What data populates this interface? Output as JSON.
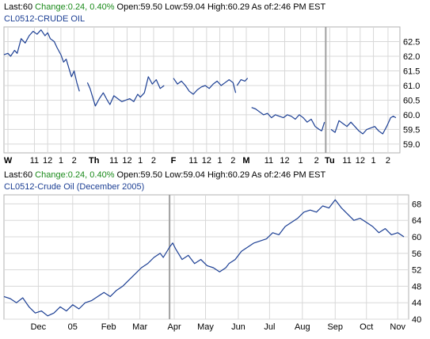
{
  "colors": {
    "line": "#1c3f94",
    "grid": "#d8d8d8",
    "frame": "#b0b0b0",
    "change": "#1a8a1a",
    "subtitle": "#1c3f94",
    "separator": "#a0a0a0"
  },
  "top_panel": {
    "quote": {
      "last_label": "Last:",
      "last_value": "60",
      "change_label": "Change:",
      "change_value": "0.24, 0.40%",
      "open_label": "Open:",
      "open_value": "59.50",
      "low_label": "Low:",
      "low_value": "59.04",
      "high_label": "High:",
      "high_value": "60.29",
      "asof_label": "As of:",
      "asof_value": "2:46 PM EST"
    },
    "subtitle": "CL0512-CRUDE OIL"
  },
  "bottom_panel": {
    "quote": {
      "last_label": "Last:",
      "last_value": "60",
      "change_label": "Change:",
      "change_value": "0.24, 0.40%",
      "open_label": "Open:",
      "open_value": "59.50",
      "low_label": "Low:",
      "low_value": "59.04",
      "high_label": "High:",
      "high_value": "60.29",
      "asof_label": "As of:",
      "asof_value": "2:46 PM EST"
    },
    "subtitle": "CL0512-Crude Oil (December 2005)"
  },
  "chart_data": [
    {
      "type": "line",
      "title": "CL0512-CRUDE OIL",
      "xlabel": "",
      "ylabel": "",
      "ylim": [
        58.7,
        63.0
      ],
      "y_ticks": [
        "62.5",
        "62.0",
        "61.5",
        "61.0",
        "60.5",
        "60.0",
        "59.5",
        "59.0"
      ],
      "x_ticks": [
        {
          "label": "W",
          "bold": true,
          "x": 0
        },
        {
          "label": "11",
          "x": 2
        },
        {
          "label": "12",
          "x": 3
        },
        {
          "label": "1",
          "x": 4
        },
        {
          "label": "2",
          "x": 5
        },
        {
          "label": "Th",
          "bold": true,
          "x": 6.5
        },
        {
          "label": "11",
          "x": 8
        },
        {
          "label": "12",
          "x": 9
        },
        {
          "label": "1",
          "x": 10
        },
        {
          "label": "2",
          "x": 11
        },
        {
          "label": "F",
          "bold": true,
          "x": 12.5
        },
        {
          "label": "11",
          "x": 14
        },
        {
          "label": "12",
          "x": 15
        },
        {
          "label": "1",
          "x": 16
        },
        {
          "label": "2",
          "x": 17
        },
        {
          "label": "M",
          "bold": true,
          "x": 18
        },
        {
          "label": "11",
          "x": 19.7
        },
        {
          "label": "12",
          "x": 20.9
        },
        {
          "label": "1",
          "x": 22.1
        },
        {
          "label": "2",
          "x": 23.3
        },
        {
          "label": "Tu",
          "bold": true,
          "x": 24.3
        },
        {
          "label": "11",
          "x": 25.6
        },
        {
          "label": "12",
          "x": 26.6
        },
        {
          "label": "1",
          "x": 27.6
        },
        {
          "label": "2",
          "x": 28.7
        }
      ],
      "xlim": [
        -0.3,
        29.6
      ],
      "grid": true,
      "session_separator_x": 24.0,
      "series": [
        {
          "segments": [
            [
              [
                -0.3,
                62.05
              ],
              [
                0.0,
                62.1
              ],
              [
                0.2,
                62.0
              ],
              [
                0.5,
                62.2
              ],
              [
                0.7,
                62.1
              ],
              [
                1.0,
                62.6
              ],
              [
                1.3,
                62.45
              ],
              [
                1.6,
                62.7
              ],
              [
                1.9,
                62.85
              ],
              [
                2.2,
                62.75
              ],
              [
                2.5,
                62.9
              ],
              [
                2.8,
                62.7
              ],
              [
                3.0,
                62.8
              ],
              [
                3.2,
                62.6
              ],
              [
                3.5,
                62.5
              ],
              [
                3.7,
                62.3
              ],
              [
                4.0,
                62.05
              ],
              [
                4.2,
                61.8
              ],
              [
                4.4,
                61.9
              ],
              [
                4.6,
                61.6
              ],
              [
                4.8,
                61.3
              ],
              [
                5.0,
                61.5
              ],
              [
                5.2,
                61.1
              ],
              [
                5.4,
                60.8
              ]
            ],
            [
              [
                6.0,
                61.1
              ],
              [
                6.2,
                60.9
              ],
              [
                6.4,
                60.6
              ],
              [
                6.6,
                60.3
              ],
              [
                6.9,
                60.55
              ],
              [
                7.2,
                60.75
              ],
              [
                7.5,
                60.5
              ],
              [
                7.7,
                60.35
              ],
              [
                8.0,
                60.65
              ],
              [
                8.3,
                60.55
              ],
              [
                8.6,
                60.45
              ],
              [
                8.9,
                60.5
              ],
              [
                9.2,
                60.55
              ],
              [
                9.5,
                60.45
              ],
              [
                9.8,
                60.7
              ],
              [
                10.0,
                60.6
              ],
              [
                10.3,
                60.75
              ],
              [
                10.6,
                61.3
              ],
              [
                10.9,
                61.05
              ],
              [
                11.2,
                61.2
              ],
              [
                11.5,
                60.9
              ],
              [
                11.8,
                61.0
              ]
            ],
            [
              [
                12.5,
                61.25
              ],
              [
                12.8,
                61.05
              ],
              [
                13.1,
                61.15
              ],
              [
                13.4,
                61.0
              ],
              [
                13.7,
                60.8
              ],
              [
                14.0,
                60.7
              ],
              [
                14.3,
                60.85
              ],
              [
                14.6,
                60.95
              ],
              [
                14.9,
                61.0
              ],
              [
                15.2,
                60.9
              ],
              [
                15.5,
                61.05
              ],
              [
                15.8,
                61.15
              ],
              [
                16.1,
                61.0
              ],
              [
                16.4,
                61.1
              ],
              [
                16.7,
                61.2
              ],
              [
                17.0,
                61.1
              ],
              [
                17.2,
                60.75
              ]
            ],
            [
              [
                17.3,
                61.0
              ],
              [
                17.6,
                61.2
              ],
              [
                17.9,
                61.15
              ],
              [
                18.1,
                61.25
              ]
            ],
            [
              [
                18.4,
                60.25
              ],
              [
                18.7,
                60.2
              ],
              [
                19.0,
                60.1
              ],
              [
                19.3,
                60.0
              ],
              [
                19.6,
                60.05
              ],
              [
                19.9,
                59.9
              ],
              [
                20.2,
                60.0
              ],
              [
                20.5,
                59.95
              ],
              [
                20.8,
                59.9
              ],
              [
                21.1,
                60.0
              ],
              [
                21.4,
                59.95
              ],
              [
                21.7,
                59.85
              ],
              [
                22.0,
                60.0
              ],
              [
                22.3,
                59.9
              ],
              [
                22.6,
                59.75
              ],
              [
                22.9,
                59.85
              ],
              [
                23.2,
                59.6
              ],
              [
                23.5,
                59.5
              ],
              [
                23.7,
                59.45
              ]
            ],
            [
              [
                23.7,
                59.45
              ],
              [
                23.9,
                59.75
              ]
            ],
            [
              [
                24.4,
                59.5
              ],
              [
                24.7,
                59.4
              ],
              [
                25.0,
                59.8
              ],
              [
                25.3,
                59.7
              ],
              [
                25.6,
                59.6
              ],
              [
                25.9,
                59.75
              ],
              [
                26.2,
                59.6
              ],
              [
                26.5,
                59.45
              ],
              [
                26.8,
                59.35
              ],
              [
                27.1,
                59.5
              ],
              [
                27.4,
                59.55
              ],
              [
                27.7,
                59.6
              ],
              [
                28.0,
                59.45
              ],
              [
                28.3,
                59.35
              ],
              [
                28.6,
                59.6
              ],
              [
                28.9,
                59.9
              ],
              [
                29.1,
                59.95
              ],
              [
                29.3,
                59.9
              ]
            ]
          ]
        }
      ]
    },
    {
      "type": "line",
      "title": "CL0512-Crude Oil (December 2005)",
      "xlabel": "",
      "ylabel": "",
      "ylim": [
        40,
        70.2
      ],
      "y_ticks": [
        "68",
        "64",
        "60",
        "56",
        "52",
        "48",
        "44",
        "40"
      ],
      "x_ticks": [
        {
          "label": "Dec",
          "x": 1.1
        },
        {
          "label": "05",
          "x": 2.2
        },
        {
          "label": "Feb",
          "x": 3.35
        },
        {
          "label": "Mar",
          "x": 4.35
        },
        {
          "label": "Apr",
          "x": 5.45
        },
        {
          "label": "May",
          "x": 6.45
        },
        {
          "label": "Jun",
          "x": 7.5
        },
        {
          "label": "Jul",
          "x": 8.5
        },
        {
          "label": "Aug",
          "x": 9.55
        },
        {
          "label": "Sep",
          "x": 10.6
        },
        {
          "label": "Oct",
          "x": 11.6
        },
        {
          "label": "Nov",
          "x": 12.6
        }
      ],
      "xlim": [
        0,
        12.95
      ],
      "grid": true,
      "session_separator_x": 5.3,
      "series": [
        {
          "segments": [
            [
              [
                0.0,
                45.5
              ],
              [
                0.2,
                45.0
              ],
              [
                0.4,
                44.0
              ],
              [
                0.6,
                45.2
              ],
              [
                0.8,
                43.0
              ],
              [
                1.0,
                41.5
              ],
              [
                1.2,
                42.0
              ],
              [
                1.4,
                40.8
              ],
              [
                1.6,
                41.5
              ],
              [
                1.8,
                43.0
              ],
              [
                2.0,
                42.0
              ],
              [
                2.2,
                43.5
              ],
              [
                2.4,
                42.5
              ],
              [
                2.6,
                44.0
              ],
              [
                2.8,
                44.5
              ],
              [
                3.0,
                45.5
              ],
              [
                3.2,
                46.5
              ],
              [
                3.4,
                45.5
              ],
              [
                3.6,
                47.0
              ],
              [
                3.8,
                48.0
              ],
              [
                4.0,
                49.5
              ],
              [
                4.2,
                51.0
              ],
              [
                4.4,
                52.5
              ],
              [
                4.6,
                53.5
              ],
              [
                4.8,
                55.0
              ],
              [
                5.0,
                56.0
              ],
              [
                5.1,
                55.0
              ],
              [
                5.3,
                57.5
              ],
              [
                5.4,
                58.5
              ],
              [
                5.5,
                57.0
              ],
              [
                5.7,
                54.5
              ],
              [
                5.9,
                55.5
              ],
              [
                6.1,
                53.5
              ],
              [
                6.3,
                54.5
              ],
              [
                6.5,
                53.0
              ],
              [
                6.7,
                52.5
              ],
              [
                6.9,
                51.5
              ],
              [
                7.1,
                52.5
              ],
              [
                7.2,
                53.5
              ],
              [
                7.4,
                54.5
              ],
              [
                7.6,
                56.5
              ],
              [
                7.8,
                57.5
              ],
              [
                8.0,
                58.5
              ],
              [
                8.2,
                59.0
              ],
              [
                8.4,
                59.5
              ],
              [
                8.6,
                61.0
              ],
              [
                8.8,
                60.5
              ],
              [
                9.0,
                62.5
              ],
              [
                9.2,
                63.5
              ],
              [
                9.4,
                64.5
              ],
              [
                9.6,
                66.0
              ],
              [
                9.8,
                66.5
              ],
              [
                10.0,
                66.0
              ],
              [
                10.2,
                67.5
              ],
              [
                10.4,
                67.0
              ],
              [
                10.6,
                69.0
              ],
              [
                10.8,
                67.0
              ],
              [
                11.0,
                65.5
              ],
              [
                11.2,
                64.0
              ],
              [
                11.4,
                64.5
              ],
              [
                11.6,
                63.5
              ],
              [
                11.8,
                62.5
              ],
              [
                12.0,
                61.0
              ],
              [
                12.2,
                62.0
              ],
              [
                12.4,
                60.5
              ],
              [
                12.6,
                61.0
              ],
              [
                12.8,
                60.0
              ]
            ]
          ]
        }
      ]
    }
  ]
}
